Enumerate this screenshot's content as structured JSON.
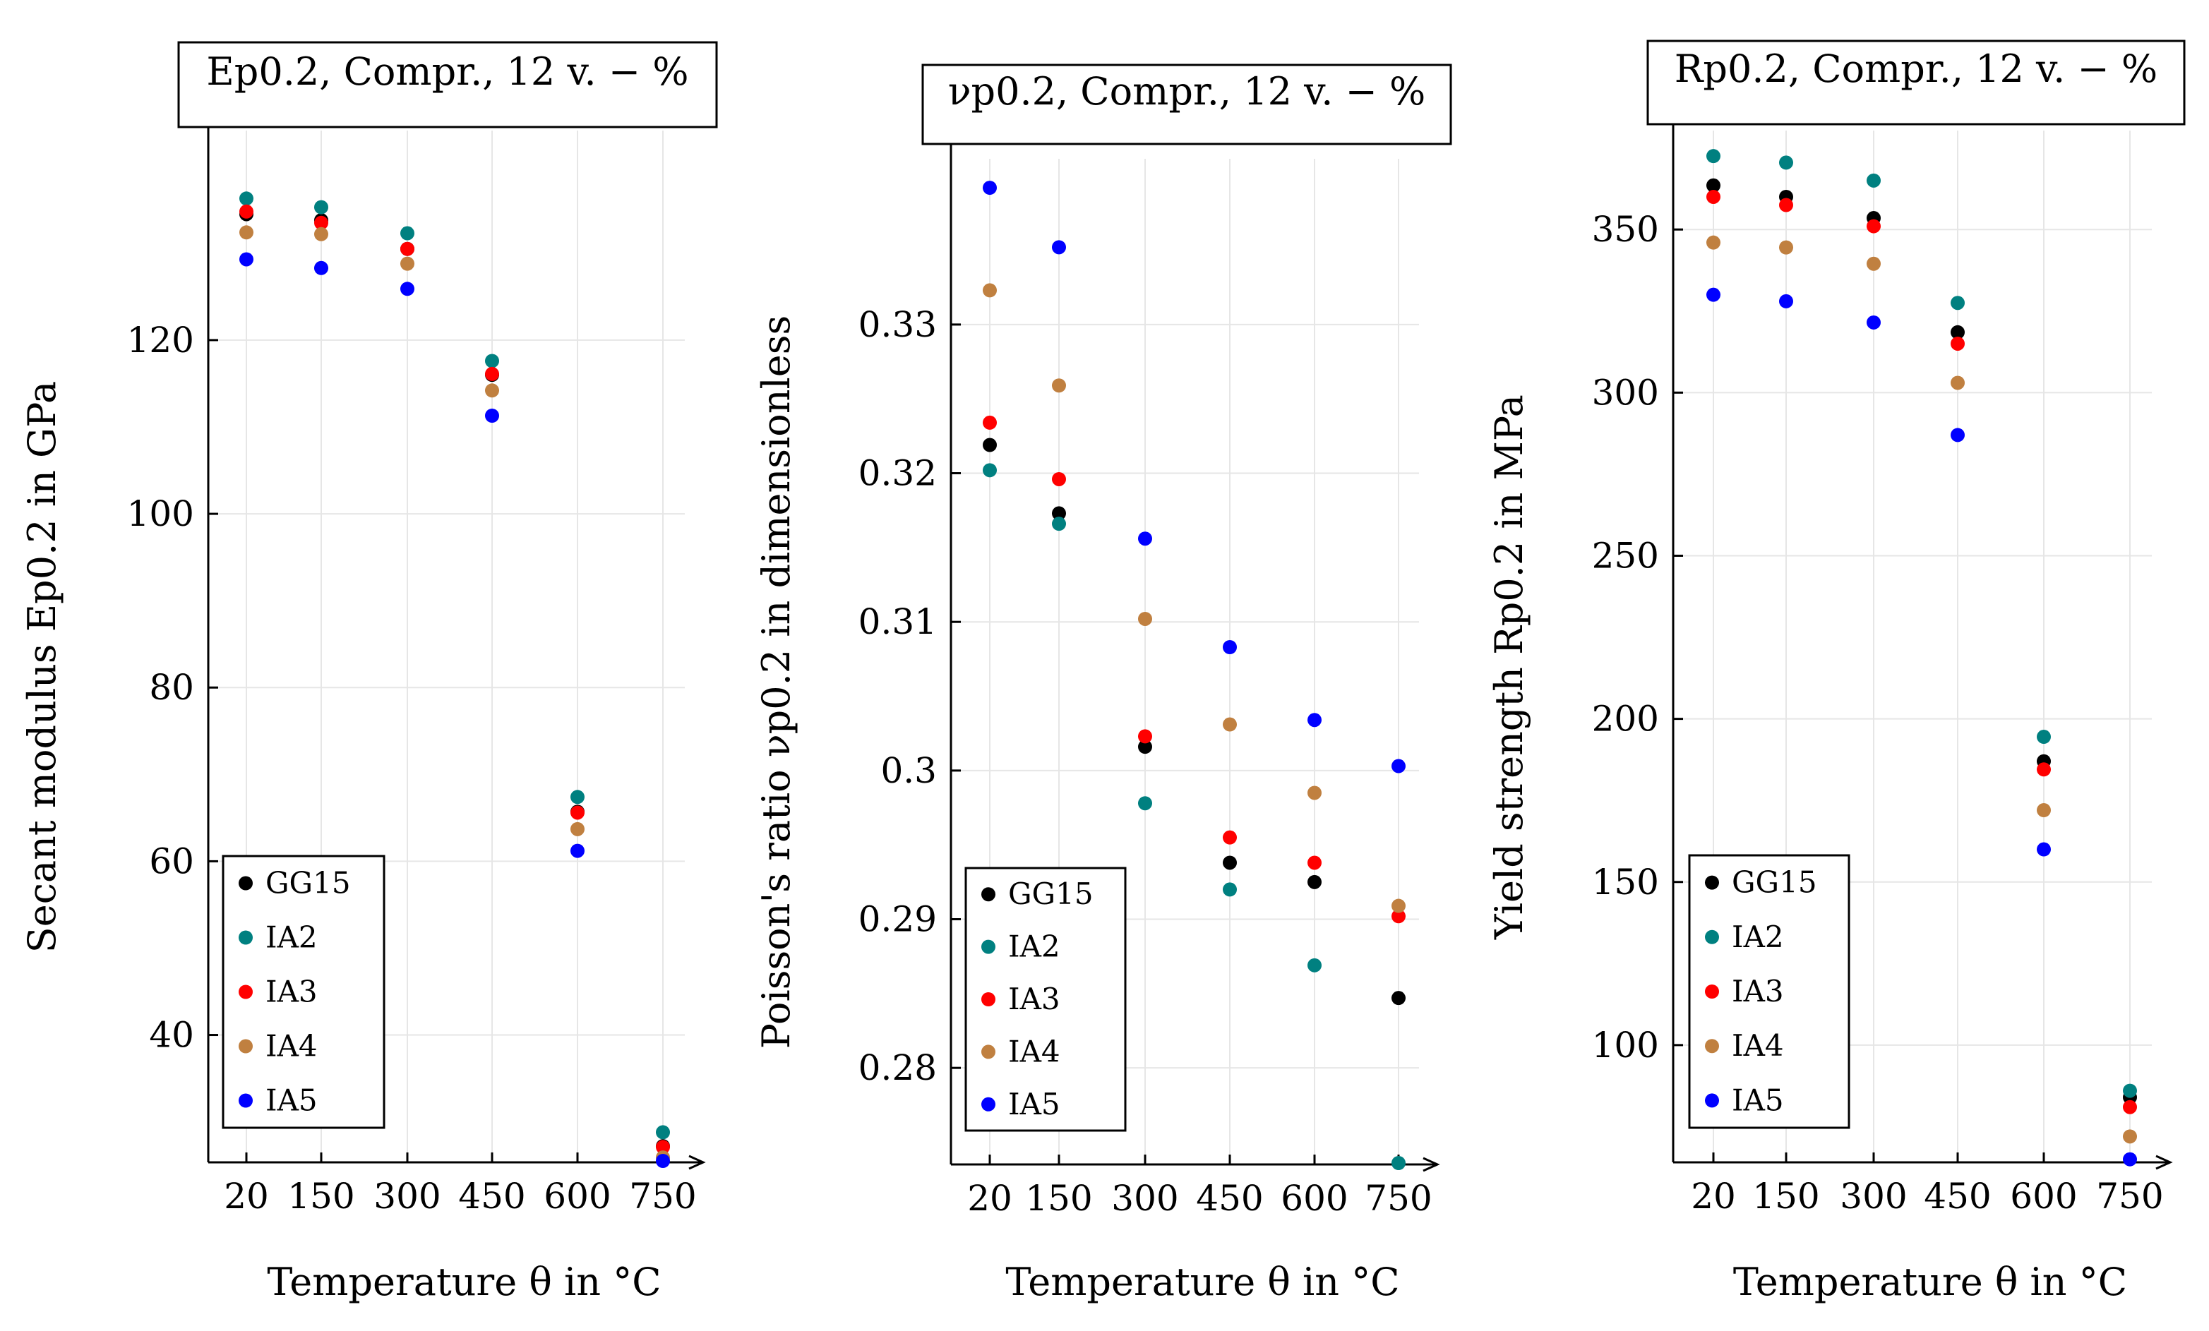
{
  "legend_entries": [
    {
      "name": "GG15",
      "color": "#000000"
    },
    {
      "name": "IA2",
      "color": "#008080"
    },
    {
      "name": "IA3",
      "color": "#ff0000"
    },
    {
      "name": "IA4",
      "color": "#c08040"
    },
    {
      "name": "IA5",
      "color": "#0000ff"
    }
  ],
  "chart_data": [
    {
      "type": "scatter",
      "title": "Ep0.2, Compr., 12 v. − %",
      "xlabel": "Temperature θ in °C",
      "ylabel": "Secant modulus Ep0.2 in GPa",
      "categories": [
        "20",
        "150",
        "300",
        "450",
        "600",
        "750"
      ],
      "yticks": [
        "40",
        "60",
        "80",
        "100",
        "120"
      ],
      "ylim": [
        25.5,
        142.5
      ],
      "grid": true,
      "legend_position": "bottom-left",
      "series": [
        {
          "name": "GG15",
          "color": "#000000",
          "values": [
            134.5,
            133.8,
            130.5,
            116.0,
            65.7,
            27.2
          ]
        },
        {
          "name": "IA2",
          "color": "#008080",
          "values": [
            136.3,
            135.3,
            132.3,
            117.6,
            67.4,
            28.8
          ]
        },
        {
          "name": "IA3",
          "color": "#ff0000",
          "values": [
            134.8,
            133.5,
            130.5,
            116.1,
            65.6,
            27.1
          ]
        },
        {
          "name": "IA4",
          "color": "#c08040",
          "values": [
            132.4,
            132.2,
            128.8,
            114.2,
            63.7,
            25.9
          ]
        },
        {
          "name": "IA5",
          "color": "#0000ff",
          "values": [
            129.3,
            128.3,
            125.9,
            111.3,
            61.2,
            25.5
          ]
        }
      ]
    },
    {
      "type": "scatter",
      "title": "νp0.2, Compr., 12 v. − %",
      "xlabel": "Temperature θ in °C",
      "ylabel": "Poisson's ratio νp0.2 in dimensionless",
      "categories": [
        "20",
        "150",
        "300",
        "450",
        "600",
        "750"
      ],
      "yticks": [
        "0.28",
        "0.29",
        "0.3",
        "0.31",
        "0.32",
        "0.33"
      ],
      "ylim": [
        0.2736,
        0.3402
      ],
      "grid": true,
      "legend_position": "bottom-left",
      "series": [
        {
          "name": "GG15",
          "color": "#000000",
          "values": [
            0.3219,
            0.3173,
            0.3016,
            0.2938,
            0.2925,
            0.2847
          ]
        },
        {
          "name": "IA2",
          "color": "#008080",
          "values": [
            0.3202,
            0.3166,
            0.2978,
            0.292,
            0.2869,
            0.2736
          ]
        },
        {
          "name": "IA3",
          "color": "#ff0000",
          "values": [
            0.3234,
            0.3196,
            0.3023,
            0.2955,
            0.2938,
            0.2902
          ]
        },
        {
          "name": "IA4",
          "color": "#c08040",
          "values": [
            0.3323,
            0.3259,
            0.3102,
            0.3031,
            0.2985,
            0.2909
          ]
        },
        {
          "name": "IA5",
          "color": "#0000ff",
          "values": [
            0.3392,
            0.3352,
            0.3156,
            0.3083,
            0.3034,
            0.3003
          ]
        }
      ]
    },
    {
      "type": "scatter",
      "title": "Rp0.2, Compr., 12 v. − %",
      "xlabel": "Temperature θ in °C",
      "ylabel": "Yield strength Rp0.2 in MPa",
      "categories": [
        "20",
        "150",
        "300",
        "450",
        "600",
        "750"
      ],
      "yticks": [
        "100",
        "150",
        "200",
        "250",
        "300",
        "350"
      ],
      "ylim": [
        64.5,
        376
      ],
      "grid": true,
      "legend_position": "bottom-left",
      "series": [
        {
          "name": "GG15",
          "color": "#000000",
          "values": [
            363.5,
            360.0,
            353.5,
            318.5,
            187.0,
            84.0
          ]
        },
        {
          "name": "IA2",
          "color": "#008080",
          "values": [
            372.5,
            370.5,
            365.0,
            327.5,
            194.5,
            86.0
          ]
        },
        {
          "name": "IA3",
          "color": "#ff0000",
          "values": [
            360.0,
            357.5,
            351.0,
            315.0,
            184.5,
            81.0
          ]
        },
        {
          "name": "IA4",
          "color": "#c08040",
          "values": [
            346.0,
            344.5,
            339.5,
            303.0,
            172.0,
            72.0
          ]
        },
        {
          "name": "IA5",
          "color": "#0000ff",
          "values": [
            330.0,
            328.0,
            321.5,
            287.0,
            160.0,
            65.0
          ]
        }
      ]
    }
  ]
}
